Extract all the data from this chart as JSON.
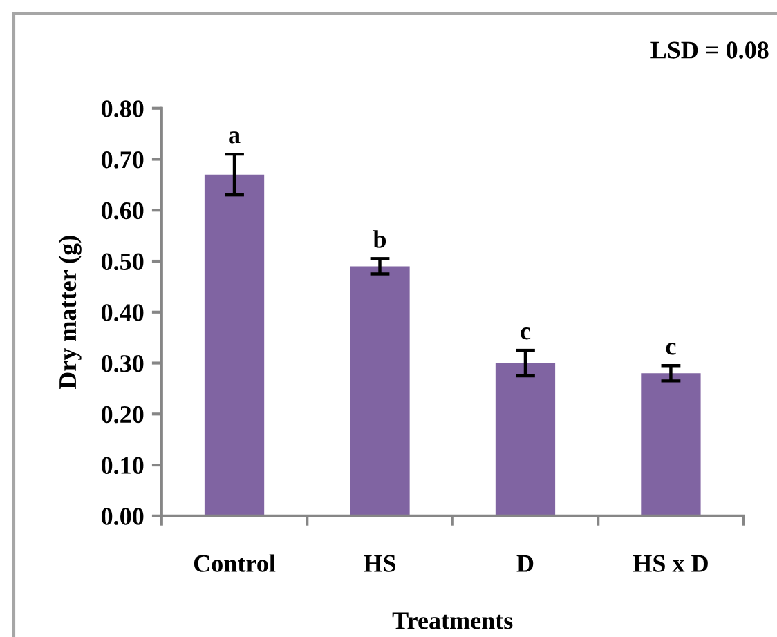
{
  "chart_data": {
    "type": "bar",
    "xlabel": "Treatments",
    "ylabel": "Dry matter (g)",
    "categories": [
      "Control",
      "HS",
      "D",
      "HS x D"
    ],
    "values": [
      0.67,
      0.49,
      0.3,
      0.28
    ],
    "errors": [
      0.04,
      0.015,
      0.025,
      0.015
    ],
    "color": "#8064a2",
    "ylim": [
      0,
      0.8
    ],
    "yticks": [
      {
        "value": 0,
        "label": "0.00"
      },
      {
        "value": 0.1,
        "label": "0.10"
      },
      {
        "value": 0.2,
        "label": "0.20"
      },
      {
        "value": 0.3,
        "label": "0.30"
      },
      {
        "value": 0.4,
        "label": "0.40"
      },
      {
        "value": 0.5,
        "label": "0.50"
      },
      {
        "value": 0.6,
        "label": "0.60"
      },
      {
        "value": 0.7,
        "label": "0.70"
      },
      {
        "value": 0.8,
        "label": "0.80"
      }
    ],
    "annotations": [
      "LSD = 0.08",
      {
        "text": "a",
        "x": "Control",
        "y": 0.71
      },
      {
        "text": "b",
        "x": "HS",
        "y": 0.505
      },
      {
        "text": "c",
        "x": "D",
        "y": 0.325
      },
      {
        "text": "c",
        "x": "HS x D",
        "y": 0.295
      }
    ]
  }
}
